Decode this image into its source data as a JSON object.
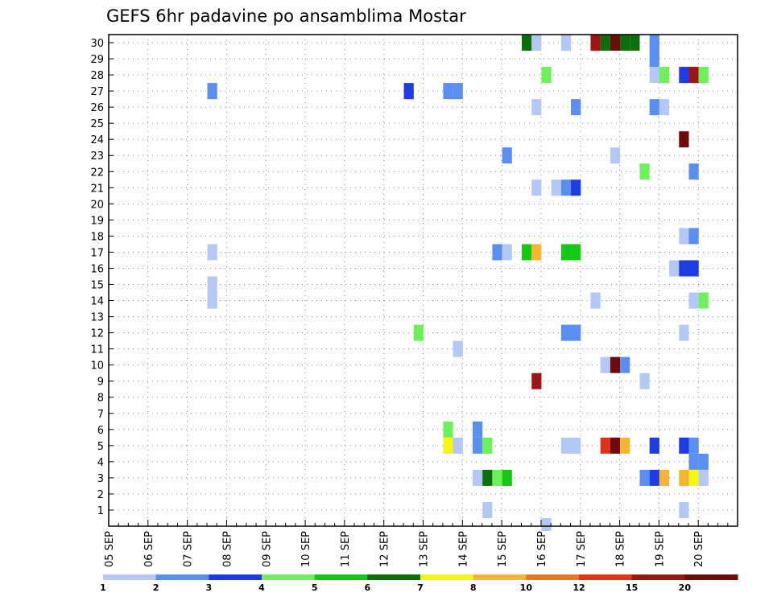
{
  "chart_data": {
    "type": "heatmap",
    "title": "GEFS 6hr padavine po ansamblima Mostar",
    "x_tick_labels": [
      "05 SEP",
      "06 SEP",
      "07 SEP",
      "08 SEP",
      "09 SEP",
      "10 SEP",
      "11 SEP",
      "12 SEP",
      "13 SEP",
      "14 SEP",
      "15 SEP",
      "16 SEP",
      "17 SEP",
      "18 SEP",
      "19 SEP",
      "20 SEP"
    ],
    "y_tick_labels": [
      "1",
      "2",
      "3",
      "4",
      "5",
      "6",
      "7",
      "8",
      "9",
      "10",
      "11",
      "12",
      "13",
      "14",
      "15",
      "16",
      "17",
      "18",
      "19",
      "20",
      "21",
      "22",
      "23",
      "24",
      "25",
      "26",
      "27",
      "28",
      "29",
      "30"
    ],
    "ylim": [
      0,
      30
    ],
    "time_step": "6hr",
    "grid": true,
    "legend": {
      "placement": "bottom",
      "colors": [
        "#b4c8f5",
        "#5a8ef0",
        "#1e3ce6",
        "#6ef05a",
        "#14c814",
        "#0a6e0a",
        "#f5f514",
        "#f5b432",
        "#f07814",
        "#e03214",
        "#a01414",
        "#6e0a0a"
      ],
      "labels": [
        "1",
        "2",
        "3",
        "4",
        "5",
        "6",
        "7",
        "8",
        "10",
        "12",
        "15",
        "20"
      ]
    },
    "cells": [
      {
        "member": 30,
        "step": 42,
        "color": "#0a6e0a"
      },
      {
        "member": 30,
        "step": 43,
        "color": "#b4c8f5"
      },
      {
        "member": 30,
        "step": 46,
        "color": "#b4c8f5"
      },
      {
        "member": 30,
        "step": 49,
        "color": "#a01414"
      },
      {
        "member": 30,
        "step": 50,
        "color": "#0a6e0a"
      },
      {
        "member": 30,
        "step": 51,
        "color": "#6e0a0a"
      },
      {
        "member": 30,
        "step": 52,
        "color": "#0a6e0a"
      },
      {
        "member": 30,
        "step": 53,
        "color": "#0a6e0a"
      },
      {
        "member": 30,
        "step": 55,
        "color": "#5a8ef0"
      },
      {
        "member": 29,
        "step": 55,
        "color": "#5a8ef0"
      },
      {
        "member": 28,
        "step": 44,
        "color": "#6ef05a"
      },
      {
        "member": 28,
        "step": 55,
        "color": "#b4c8f5"
      },
      {
        "member": 28,
        "step": 56,
        "color": "#6ef05a"
      },
      {
        "member": 28,
        "step": 58,
        "color": "#1e3ce6"
      },
      {
        "member": 28,
        "step": 59,
        "color": "#a01414"
      },
      {
        "member": 28,
        "step": 60,
        "color": "#6ef05a"
      },
      {
        "member": 27,
        "step": 10,
        "color": "#5a8ef0"
      },
      {
        "member": 27,
        "step": 30,
        "color": "#1e3ce6"
      },
      {
        "member": 27,
        "step": 34,
        "color": "#5a8ef0"
      },
      {
        "member": 27,
        "step": 35,
        "color": "#5a8ef0"
      },
      {
        "member": 26,
        "step": 43,
        "color": "#b4c8f5"
      },
      {
        "member": 26,
        "step": 47,
        "color": "#5a8ef0"
      },
      {
        "member": 26,
        "step": 55,
        "color": "#5a8ef0"
      },
      {
        "member": 26,
        "step": 56,
        "color": "#b4c8f5"
      },
      {
        "member": 24,
        "step": 58,
        "color": "#6e0a0a"
      },
      {
        "member": 23,
        "step": 40,
        "color": "#5a8ef0"
      },
      {
        "member": 23,
        "step": 51,
        "color": "#b4c8f5"
      },
      {
        "member": 22,
        "step": 54,
        "color": "#6ef05a"
      },
      {
        "member": 22,
        "step": 59,
        "color": "#5a8ef0"
      },
      {
        "member": 21,
        "step": 43,
        "color": "#b4c8f5"
      },
      {
        "member": 21,
        "step": 45,
        "color": "#b4c8f5"
      },
      {
        "member": 21,
        "step": 46,
        "color": "#5a8ef0"
      },
      {
        "member": 21,
        "step": 47,
        "color": "#1e3ce6"
      },
      {
        "member": 18,
        "step": 58,
        "color": "#b4c8f5"
      },
      {
        "member": 18,
        "step": 59,
        "color": "#5a8ef0"
      },
      {
        "member": 17,
        "step": 10,
        "color": "#b4c8f5"
      },
      {
        "member": 17,
        "step": 39,
        "color": "#5a8ef0"
      },
      {
        "member": 17,
        "step": 40,
        "color": "#b4c8f5"
      },
      {
        "member": 17,
        "step": 42,
        "color": "#14c814"
      },
      {
        "member": 17,
        "step": 43,
        "color": "#f5b432"
      },
      {
        "member": 17,
        "step": 46,
        "color": "#14c814"
      },
      {
        "member": 17,
        "step": 47,
        "color": "#14c814"
      },
      {
        "member": 16,
        "step": 57,
        "color": "#b4c8f5"
      },
      {
        "member": 16,
        "step": 58,
        "color": "#1e3ce6"
      },
      {
        "member": 16,
        "step": 59,
        "color": "#1e3ce6"
      },
      {
        "member": 15,
        "step": 10,
        "color": "#b4c8f5"
      },
      {
        "member": 14,
        "step": 10,
        "color": "#b4c8f5"
      },
      {
        "member": 14,
        "step": 49,
        "color": "#b4c8f5"
      },
      {
        "member": 14,
        "step": 59,
        "color": "#b4c8f5"
      },
      {
        "member": 14,
        "step": 60,
        "color": "#6ef05a"
      },
      {
        "member": 12,
        "step": 31,
        "color": "#6ef05a"
      },
      {
        "member": 12,
        "step": 46,
        "color": "#5a8ef0"
      },
      {
        "member": 12,
        "step": 47,
        "color": "#5a8ef0"
      },
      {
        "member": 12,
        "step": 58,
        "color": "#b4c8f5"
      },
      {
        "member": 11,
        "step": 35,
        "color": "#b4c8f5"
      },
      {
        "member": 10,
        "step": 50,
        "color": "#b4c8f5"
      },
      {
        "member": 10,
        "step": 51,
        "color": "#6e0a0a"
      },
      {
        "member": 10,
        "step": 52,
        "color": "#5a8ef0"
      },
      {
        "member": 9,
        "step": 43,
        "color": "#a01414"
      },
      {
        "member": 9,
        "step": 54,
        "color": "#b4c8f5"
      },
      {
        "member": 6,
        "step": 34,
        "color": "#6ef05a"
      },
      {
        "member": 6,
        "step": 37,
        "color": "#5a8ef0"
      },
      {
        "member": 5,
        "step": 34,
        "color": "#f5f514"
      },
      {
        "member": 5,
        "step": 35,
        "color": "#b4c8f5"
      },
      {
        "member": 5,
        "step": 37,
        "color": "#5a8ef0"
      },
      {
        "member": 5,
        "step": 38,
        "color": "#6ef05a"
      },
      {
        "member": 5,
        "step": 46,
        "color": "#b4c8f5"
      },
      {
        "member": 5,
        "step": 47,
        "color": "#b4c8f5"
      },
      {
        "member": 5,
        "step": 50,
        "color": "#e03214"
      },
      {
        "member": 5,
        "step": 51,
        "color": "#6e0a0a"
      },
      {
        "member": 5,
        "step": 52,
        "color": "#f5b432"
      },
      {
        "member": 5,
        "step": 55,
        "color": "#1e3ce6"
      },
      {
        "member": 5,
        "step": 58,
        "color": "#1e3ce6"
      },
      {
        "member": 5,
        "step": 59,
        "color": "#5a8ef0"
      },
      {
        "member": 4,
        "step": 59,
        "color": "#5a8ef0"
      },
      {
        "member": 4,
        "step": 60,
        "color": "#5a8ef0"
      },
      {
        "member": 3,
        "step": 37,
        "color": "#b4c8f5"
      },
      {
        "member": 3,
        "step": 38,
        "color": "#0a6e0a"
      },
      {
        "member": 3,
        "step": 39,
        "color": "#6ef05a"
      },
      {
        "member": 3,
        "step": 40,
        "color": "#14c814"
      },
      {
        "member": 3,
        "step": 54,
        "color": "#5a8ef0"
      },
      {
        "member": 3,
        "step": 55,
        "color": "#1e3ce6"
      },
      {
        "member": 3,
        "step": 56,
        "color": "#f5b432"
      },
      {
        "member": 3,
        "step": 58,
        "color": "#f5b432"
      },
      {
        "member": 3,
        "step": 59,
        "color": "#f5f514"
      },
      {
        "member": 3,
        "step": 60,
        "color": "#b4c8f5"
      },
      {
        "member": 1,
        "step": 38,
        "color": "#b4c8f5"
      },
      {
        "member": 1,
        "step": 58,
        "color": "#b4c8f5"
      },
      {
        "member": 0,
        "step": 44,
        "color": "#b4c8f5"
      }
    ]
  }
}
